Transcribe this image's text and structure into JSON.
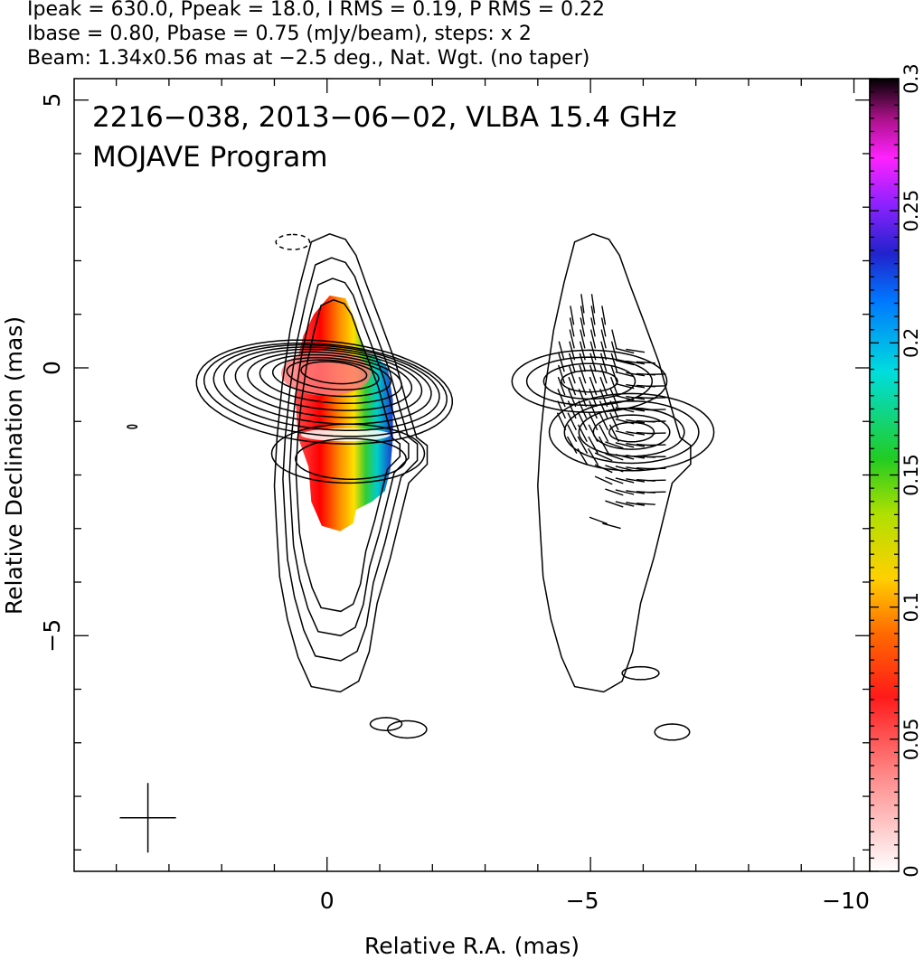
{
  "header": {
    "line1": "Ipeak = 630.0, Ppeak = 18.0, I RMS = 0.19, P RMS = 0.22",
    "line2": "Ibase = 0.80, Pbase = 0.75 (mJy/beam), steps: x 2",
    "line3": "Beam: 1.34x0.56 mas at −2.5 deg., Nat. Wgt. (no taper)"
  },
  "chart_data": {
    "type": "contour",
    "title": "2216−038, 2013−06−02, VLBA 15.4 GHz",
    "subtitle": "MOJAVE Program",
    "xlabel": "Relative R.A. (mas)",
    "ylabel": "Relative Declination (mas)",
    "xlim": [
      4.8,
      -10.3
    ],
    "ylim": [
      -9.4,
      5.4
    ],
    "x_ticks": [
      0,
      -5,
      -10
    ],
    "x_tick_labels": [
      "0",
      "−5",
      "−10"
    ],
    "y_ticks": [
      5,
      0,
      -5
    ],
    "y_tick_labels": [
      "5",
      "0",
      "−5"
    ],
    "colorbar": {
      "ticks": [
        0,
        0.05,
        0.1,
        0.15,
        0.2,
        0.25,
        0.3
      ],
      "tick_labels": [
        "0",
        "0.05",
        "0.1",
        "0.15",
        "0.2",
        "0.25",
        "0.3"
      ],
      "range": [
        0,
        0.3
      ]
    },
    "panels": [
      {
        "name": "total-intensity",
        "x_offset": 0
      },
      {
        "name": "polarization",
        "x_offset": -5
      }
    ],
    "source_peak_ra": 0,
    "source_peak_dec": 0,
    "beam": {
      "ra": 3.4,
      "dec": -8.4,
      "major": 1.34,
      "minor": 0.56,
      "pa_deg": -2.5
    }
  },
  "colors": {
    "ink": "#000000",
    "background": "#ffffff"
  }
}
